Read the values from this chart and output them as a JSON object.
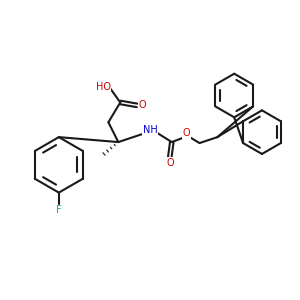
{
  "background_color": "#ffffff",
  "bond_color": "#1a1a1a",
  "bond_width": 1.5,
  "figsize": [
    3.0,
    3.0
  ],
  "dpi": 100,
  "atoms": {
    "F": {
      "color": "#00aaaa",
      "fontsize": 7
    },
    "O": {
      "color": "#cc0000",
      "fontsize": 7
    },
    "N": {
      "color": "#0000cc",
      "fontsize": 7
    },
    "H": {
      "color": "#1a1a1a",
      "fontsize": 6
    },
    "C": {
      "color": "#1a1a1a",
      "fontsize": 7
    }
  }
}
